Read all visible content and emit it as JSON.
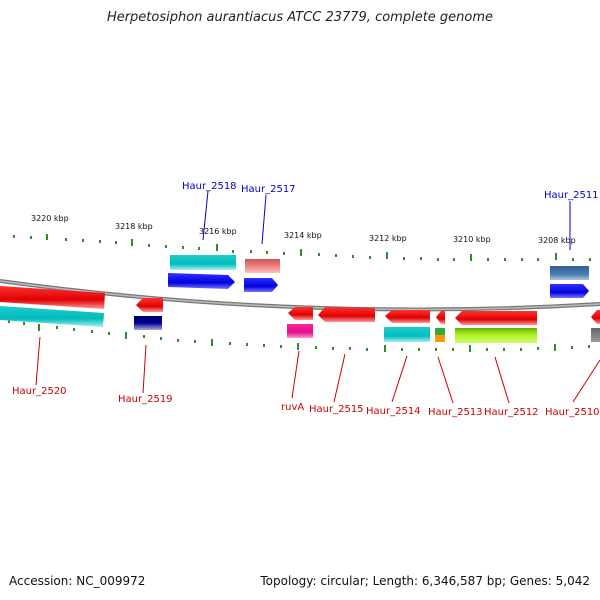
{
  "title": "Herpetosiphon aurantiacus ATCC 23779, complete genome",
  "accession": "Accession: NC_009972",
  "summary": "Topology: circular; Length: 6,346,587 bp; Genes: 5,042",
  "ticks": [
    "3220 kbp",
    "3218 kbp",
    "3216 kbp",
    "3214 kbp",
    "3212 kbp",
    "3210 kbp",
    "3208 kbp"
  ],
  "genes_top": [
    "Haur_2518",
    "Haur_2517",
    "Haur_2511"
  ],
  "genes_bottom": [
    "Haur_2520",
    "Haur_2519",
    "ruvA",
    "Haur_2515",
    "Haur_2514",
    "Haur_2513",
    "Haur_2512",
    "Haur_2510"
  ],
  "colors": {
    "top_label": "#0000cc",
    "bottom_label": "#cc0000",
    "tick": "#2e8b2e",
    "backbone": "#888888"
  }
}
